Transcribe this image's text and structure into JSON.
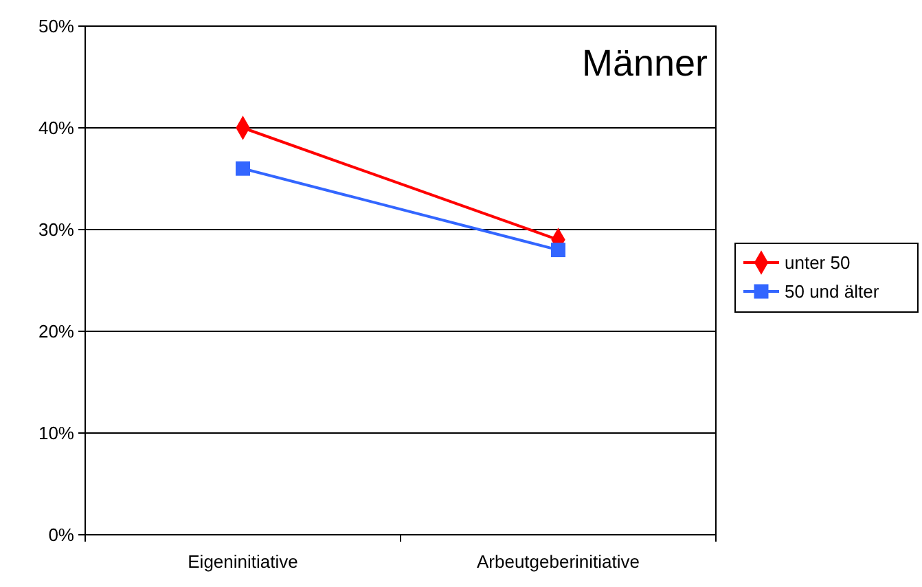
{
  "chart_data": {
    "type": "line",
    "title": "Männer",
    "categories": [
      "Eigeninitiative",
      "Arbeutgeberinitiative"
    ],
    "series": [
      {
        "name": "unter 50",
        "color": "#ff0000",
        "marker": "diamond",
        "values": [
          0.4,
          0.29
        ]
      },
      {
        "name": "50 und älter",
        "color": "#3366ff",
        "marker": "square",
        "values": [
          0.36,
          0.28
        ]
      }
    ],
    "ylim": [
      0,
      0.5
    ],
    "yticks": [
      {
        "value": 0,
        "label": "0%"
      },
      {
        "value": 0.1,
        "label": "10%"
      },
      {
        "value": 0.2,
        "label": "20%"
      },
      {
        "value": 0.3,
        "label": "30%"
      },
      {
        "value": 0.4,
        "label": "40%"
      },
      {
        "value": 0.5,
        "label": "50%"
      }
    ],
    "grid": "y",
    "legend": "right"
  }
}
